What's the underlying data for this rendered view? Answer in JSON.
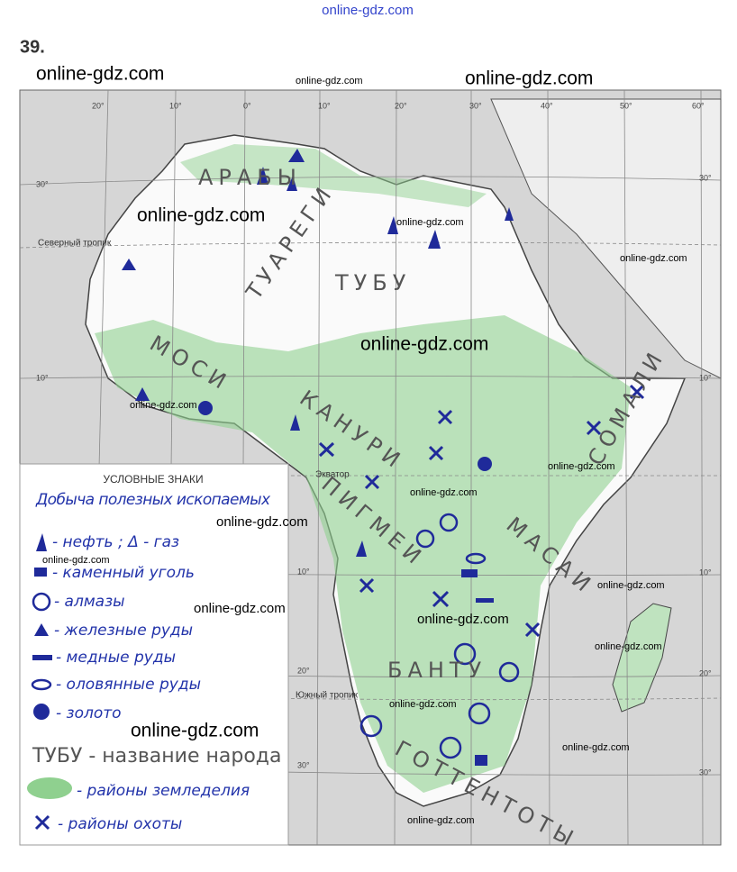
{
  "header": {
    "number": "39.",
    "site": "online-gdz.com"
  },
  "watermark": "online-gdz.com",
  "map": {
    "lon_labels": [
      "20°",
      "10°",
      "0°",
      "10°",
      "20°",
      "30°",
      "40°",
      "50°",
      "60°"
    ],
    "lat_labels": [
      "30°",
      "10°",
      "10°",
      "20°",
      "30°"
    ],
    "right_lat_labels": [
      "30°",
      "10°",
      "10°",
      "20°",
      "30°"
    ],
    "lines": {
      "tropic_north": "Северный тропик",
      "equator": "Экватор",
      "tropic_south": "Южный тропик"
    },
    "peoples": [
      "АРАБЫ",
      "ТУАРЕГИ",
      "ТУБУ",
      "МОСИ",
      "КАНУРИ",
      "ПИГМЕИ",
      "МАСАИ",
      "БАНТУ",
      "ГОТТЕНТОТЫ",
      "СОМАЛИ"
    ]
  },
  "legend": {
    "title": "УСЛОВНЫЕ ЗНАКИ",
    "heading": "Добыча полезных ископаемых",
    "items": [
      "- нефть ; Δ - газ",
      "- каменный уголь",
      "- алмазы",
      "- железные руды",
      "- медные руды",
      "- оловянные руды",
      "- золото",
      "ТУБУ - название народа",
      "- районы земледелия",
      "- районы охоты"
    ]
  }
}
